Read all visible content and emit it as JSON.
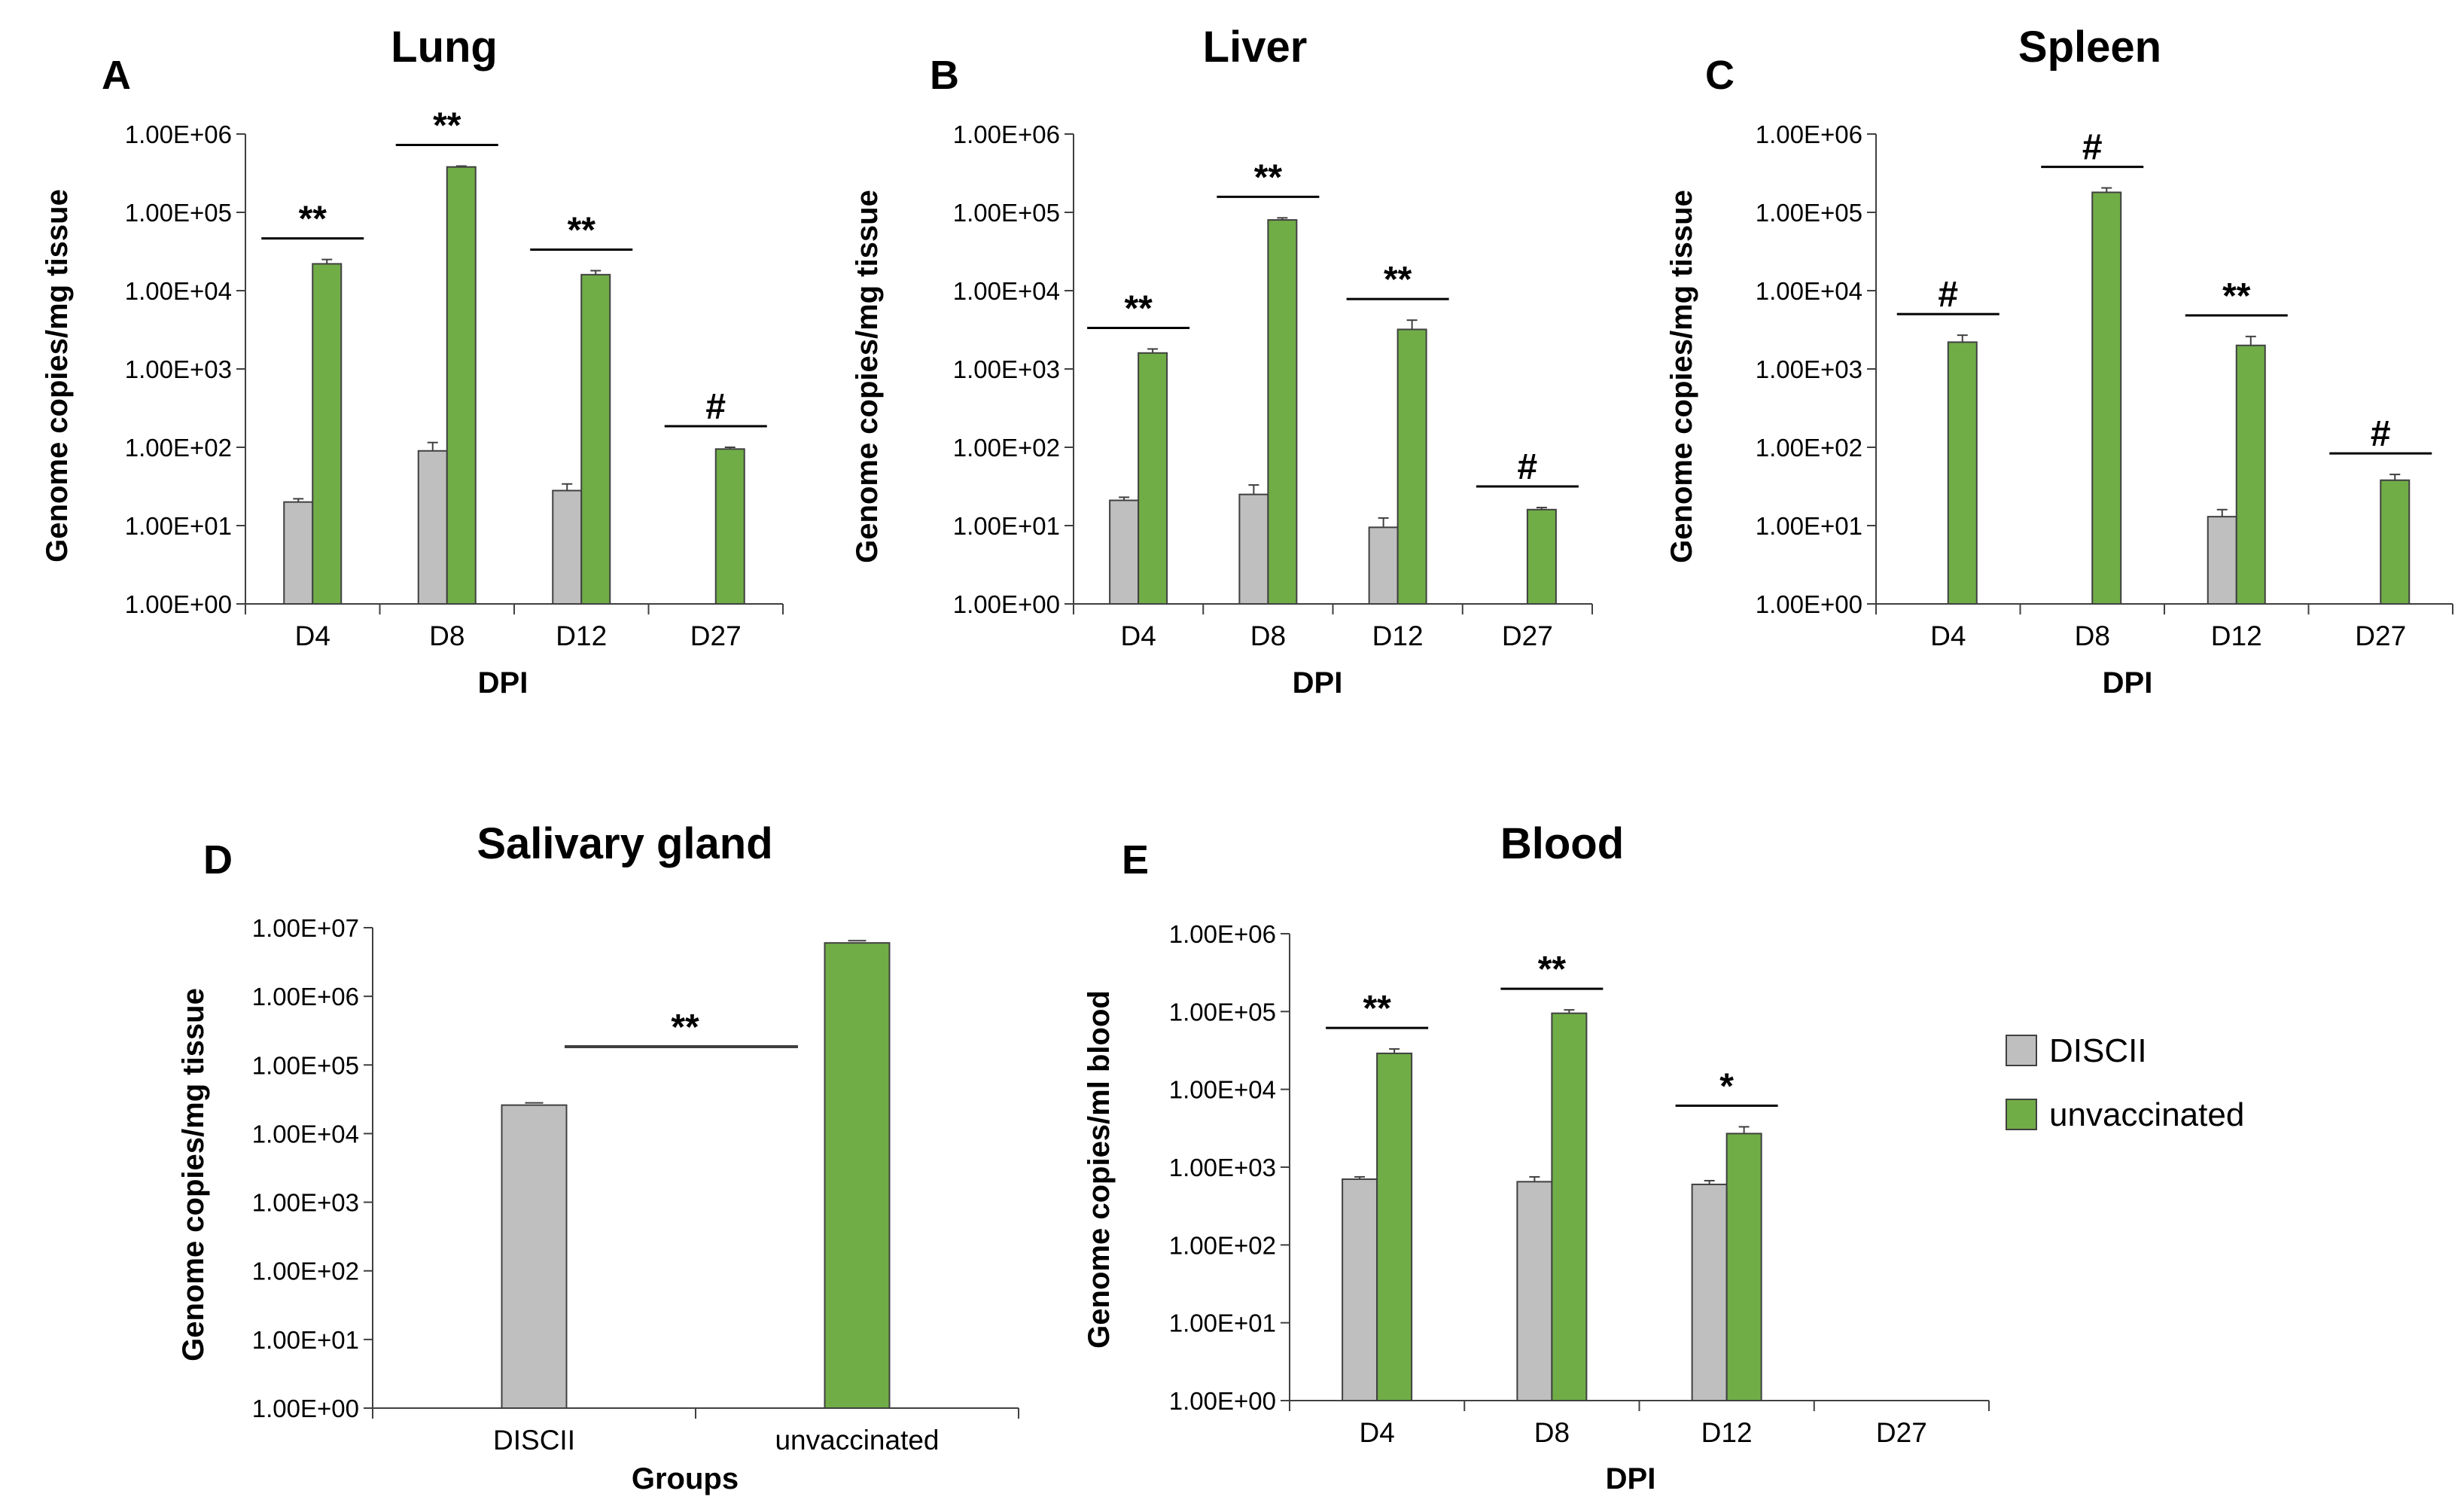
{
  "chart_data": [
    {
      "panel_letter": "A",
      "title": "Lung",
      "type": "bar",
      "xlabel": "DPI",
      "ylabel": "Genome copies/mg tissue",
      "yscale": "log",
      "ylim": [
        1,
        1000000
      ],
      "yticks": [
        "1.00E+00",
        "1.00E+01",
        "1.00E+02",
        "1.00E+03",
        "1.00E+04",
        "1.00E+05",
        "1.00E+06"
      ],
      "categories": [
        "D4",
        "D8",
        "D12",
        "D27"
      ],
      "series": [
        {
          "name": "DISCII",
          "values": [
            20,
            90,
            28,
            null
          ],
          "errors": [
            2,
            25,
            6,
            null
          ]
        },
        {
          "name": "unvaccinated",
          "values": [
            22000,
            380000,
            16000,
            95
          ],
          "errors": [
            3000,
            10000,
            2000,
            5
          ]
        }
      ],
      "significance": [
        "**",
        "**",
        "**",
        "#"
      ]
    },
    {
      "panel_letter": "B",
      "title": "Liver",
      "type": "bar",
      "xlabel": "DPI",
      "ylabel": "Genome copies/mg tissue",
      "yscale": "log",
      "ylim": [
        1,
        1000000
      ],
      "yticks": [
        "1.00E+00",
        "1.00E+01",
        "1.00E+02",
        "1.00E+03",
        "1.00E+04",
        "1.00E+05",
        "1.00E+06"
      ],
      "categories": [
        "D4",
        "D8",
        "D12",
        "D27"
      ],
      "series": [
        {
          "name": "DISCII",
          "values": [
            21,
            25,
            9.5,
            null
          ],
          "errors": [
            2,
            8,
            3,
            null
          ]
        },
        {
          "name": "unvaccinated",
          "values": [
            1600,
            80000,
            3200,
            16
          ],
          "errors": [
            200,
            5000,
            1000,
            1
          ]
        }
      ],
      "significance": [
        "**",
        "**",
        "**",
        "#"
      ]
    },
    {
      "panel_letter": "C",
      "title": "Spleen",
      "type": "bar",
      "xlabel": "DPI",
      "ylabel": "Genome copies/mg tissue",
      "yscale": "log",
      "ylim": [
        1,
        1000000
      ],
      "yticks": [
        "1.00E+00",
        "1.00E+01",
        "1.00E+02",
        "1.00E+03",
        "1.00E+04",
        "1.00E+05",
        "1.00E+06"
      ],
      "categories": [
        "D4",
        "D8",
        "D12",
        "D27"
      ],
      "series": [
        {
          "name": "DISCII",
          "values": [
            null,
            null,
            13,
            null
          ],
          "errors": [
            null,
            null,
            3,
            null
          ]
        },
        {
          "name": "unvaccinated",
          "values": [
            2200,
            180000,
            2000,
            38
          ],
          "errors": [
            500,
            25000,
            600,
            7
          ]
        }
      ],
      "significance": [
        "#",
        "#",
        "**",
        "#"
      ]
    },
    {
      "panel_letter": "D",
      "title": "Salivary gland",
      "type": "bar",
      "xlabel": "Groups",
      "ylabel": "Genome copies/mg tissue",
      "yscale": "log",
      "ylim": [
        1,
        10000000
      ],
      "yticks": [
        "1.00E+00",
        "1.00E+01",
        "1.00E+02",
        "1.00E+03",
        "1.00E+04",
        "1.00E+05",
        "1.00E+06",
        "1.00E+07"
      ],
      "categories": [
        "DISCII",
        "unvaccinated"
      ],
      "values": [
        26000,
        6000000
      ],
      "significance": "**"
    },
    {
      "panel_letter": "E",
      "title": "Blood",
      "type": "bar",
      "xlabel": "DPI",
      "ylabel": "Genome copies/ml blood",
      "yscale": "log",
      "ylim": [
        1,
        1000000
      ],
      "yticks": [
        "1.00E+00",
        "1.00E+01",
        "1.00E+02",
        "1.00E+03",
        "1.00E+04",
        "1.00E+05",
        "1.00E+06"
      ],
      "categories": [
        "D4",
        "D8",
        "D12",
        "D27"
      ],
      "series": [
        {
          "name": "DISCII",
          "values": [
            700,
            650,
            600,
            null
          ],
          "errors": [
            50,
            100,
            70,
            null
          ]
        },
        {
          "name": "unvaccinated",
          "values": [
            29000,
            95000,
            2700,
            null
          ],
          "errors": [
            4000,
            10000,
            600,
            null
          ]
        }
      ],
      "significance": [
        "**",
        "**",
        "*",
        null
      ]
    }
  ],
  "legend": {
    "placement": "right",
    "items": [
      {
        "name": "DISCII",
        "color": "#bfbfbf"
      },
      {
        "name": "unvaccinated",
        "color": "#70ad47"
      }
    ]
  },
  "colors": {
    "DISCII": "#bfbfbf",
    "unvaccinated": "#70ad47",
    "stroke": "#404040",
    "axis": "#404040"
  }
}
